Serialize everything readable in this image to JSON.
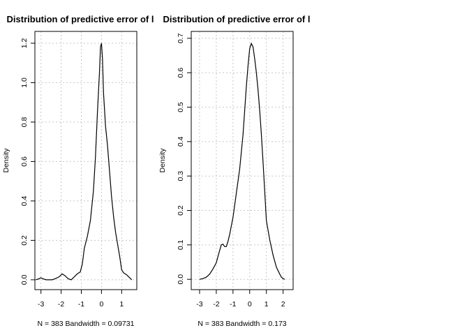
{
  "chart_data": [
    {
      "type": "line",
      "title": "Distribution of predictive error of l",
      "xlabel": "N = 383   Bandwidth = 0.09731",
      "ylabel": "Density",
      "xlim": [
        -3.3,
        1.75
      ],
      "ylim": [
        -0.05,
        1.26
      ],
      "xticks": [
        -3,
        -2,
        -1,
        0,
        1
      ],
      "yticks": [
        0.0,
        0.2,
        0.4,
        0.6,
        0.8,
        1.0,
        1.2
      ],
      "grid": true,
      "x": [
        -3.25,
        -3.1,
        -3.0,
        -2.9,
        -2.75,
        -2.45,
        -2.3,
        -2.1,
        -1.95,
        -1.8,
        -1.65,
        -1.5,
        -1.35,
        -1.2,
        -1.05,
        -0.95,
        -0.85,
        -0.7,
        -0.55,
        -0.4,
        -0.3,
        -0.2,
        -0.1,
        -0.05,
        0.0,
        0.05,
        0.1,
        0.2,
        0.3,
        0.4,
        0.5,
        0.6,
        0.7,
        0.8,
        0.9,
        1.0,
        1.1,
        1.25,
        1.4,
        1.5
      ],
      "y": [
        0.0,
        0.005,
        0.01,
        0.005,
        0.0,
        0.0,
        0.005,
        0.015,
        0.03,
        0.02,
        0.005,
        0.0,
        0.015,
        0.03,
        0.04,
        0.08,
        0.16,
        0.22,
        0.3,
        0.45,
        0.62,
        0.85,
        1.05,
        1.18,
        1.2,
        1.12,
        0.95,
        0.78,
        0.68,
        0.55,
        0.42,
        0.32,
        0.24,
        0.18,
        0.12,
        0.05,
        0.035,
        0.025,
        0.01,
        0.0
      ]
    },
    {
      "type": "line",
      "title": "Distribution of predictive error of l",
      "xlabel": "N = 383   Bandwidth = 0.173",
      "ylabel": "Density",
      "xlim": [
        -3.5,
        2.6
      ],
      "ylim": [
        -0.03,
        0.72
      ],
      "xticks": [
        -3,
        -2,
        -1,
        0,
        1,
        2
      ],
      "yticks": [
        0.0,
        0.1,
        0.2,
        0.3,
        0.4,
        0.5,
        0.6,
        0.7
      ],
      "grid": true,
      "x": [
        -3.0,
        -2.8,
        -2.6,
        -2.4,
        -2.2,
        -2.0,
        -1.85,
        -1.7,
        -1.6,
        -1.5,
        -1.4,
        -1.3,
        -1.2,
        -1.0,
        -0.8,
        -0.6,
        -0.4,
        -0.2,
        -0.1,
        0.0,
        0.1,
        0.2,
        0.3,
        0.4,
        0.5,
        0.6,
        0.7,
        0.8,
        1.0,
        1.2,
        1.4,
        1.6,
        1.8,
        1.9,
        2.0,
        2.1
      ],
      "y": [
        0.0,
        0.002,
        0.006,
        0.015,
        0.03,
        0.048,
        0.075,
        0.1,
        0.102,
        0.095,
        0.095,
        0.11,
        0.13,
        0.18,
        0.25,
        0.32,
        0.42,
        0.56,
        0.62,
        0.67,
        0.685,
        0.675,
        0.64,
        0.6,
        0.55,
        0.49,
        0.42,
        0.34,
        0.17,
        0.115,
        0.07,
        0.035,
        0.015,
        0.006,
        0.002,
        0.0
      ]
    }
  ]
}
